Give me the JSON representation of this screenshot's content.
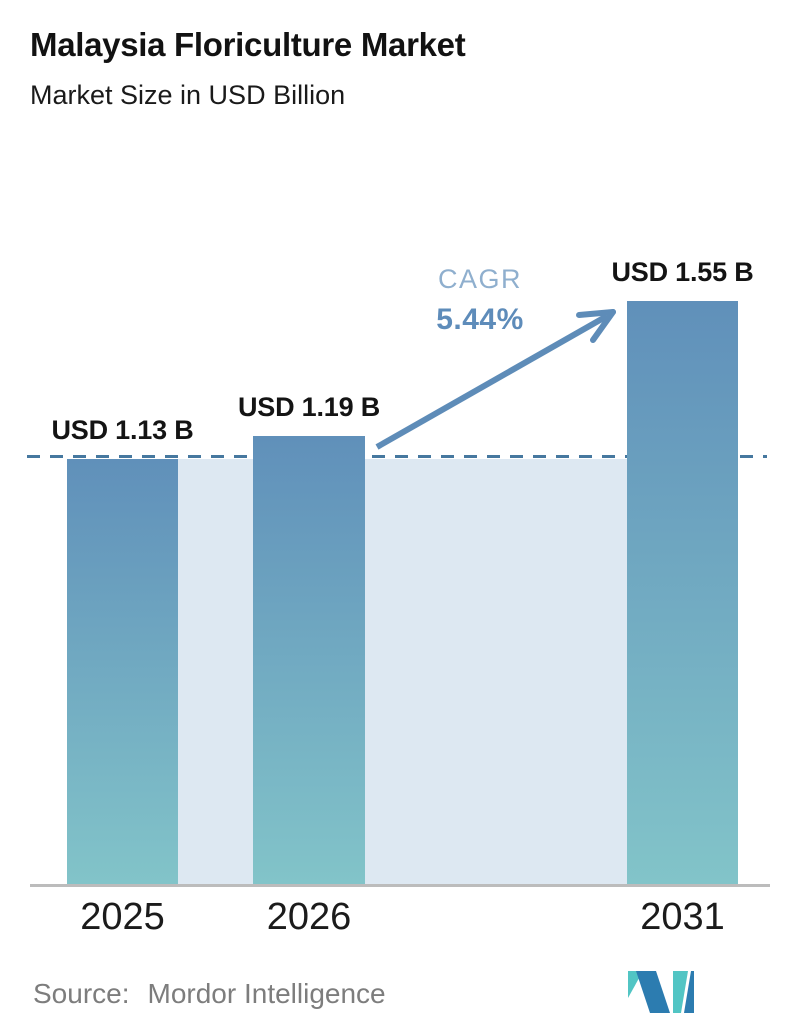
{
  "header": {
    "title": "Malaysia Floriculture Market",
    "subtitle": "Market Size in USD Billion"
  },
  "chart_data": {
    "type": "bar",
    "title": "Malaysia Floriculture Market",
    "subtitle": "Market Size in USD Billion",
    "categories": [
      "2025",
      "2026",
      "2031"
    ],
    "values": [
      1.13,
      1.19,
      1.55
    ],
    "value_labels": [
      "USD 1.13 B",
      "USD 1.19 B",
      "USD 1.55 B"
    ],
    "unit": "USD Billion",
    "ylim": [
      0,
      1.7
    ],
    "grid": false,
    "legend": "none",
    "reference_line": {
      "value": 1.13,
      "style": "dashed"
    },
    "annotations": {
      "cagr_label": "CAGR",
      "cagr_value": "5.44%",
      "arrow": "from 2026 bar to 2031 bar"
    }
  },
  "footer": {
    "source_label": "Source:",
    "source_name": "Mordor Intelligence",
    "logo": "mordor-intelligence-logo"
  },
  "colors": {
    "bar_top": "#6090ba",
    "bar_bottom": "#82c4c9",
    "band": "#dde8f2",
    "dashed_line": "#46789f",
    "arrow": "#5e8cb8",
    "cagr_label_color": "#8fafce",
    "cagr_value_color": "#5e8cba",
    "axis_line": "#bcbcbc",
    "source_text": "#7d7d7d",
    "logo_teal": "#52c5c4",
    "logo_blue": "#2c7cb0",
    "label_text": "#141414"
  }
}
